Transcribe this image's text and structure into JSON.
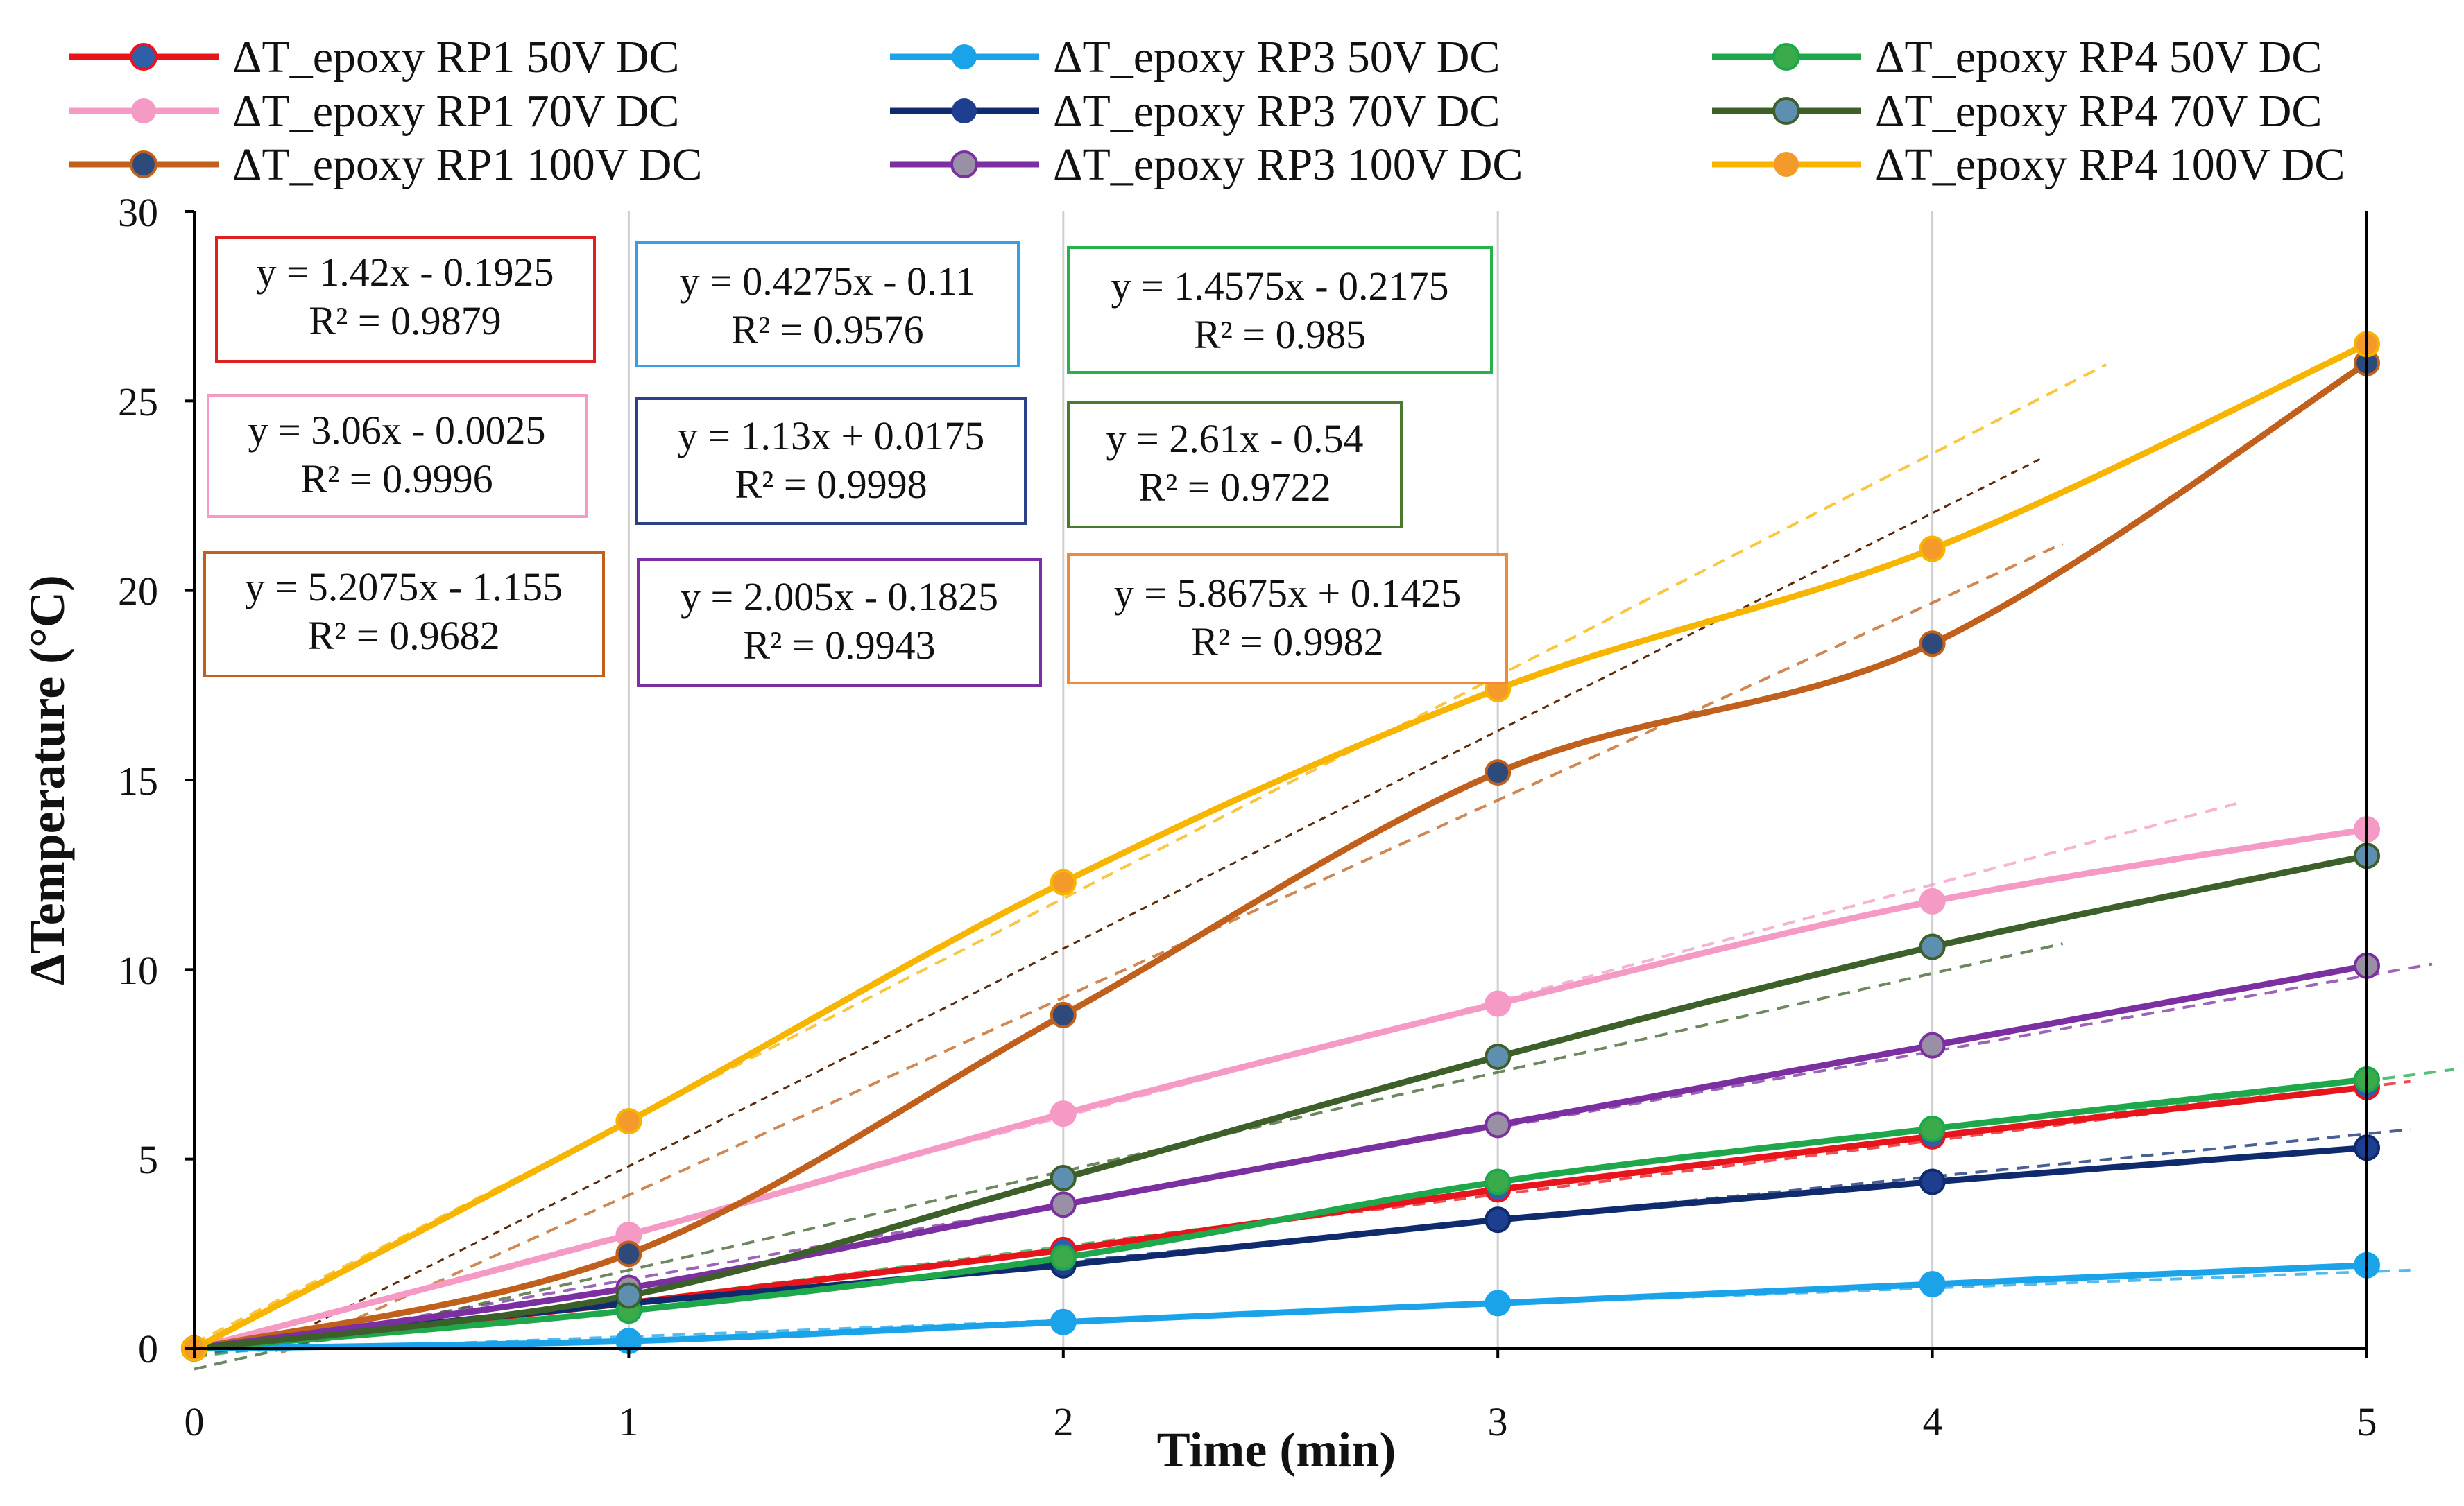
{
  "chart_data": {
    "type": "line",
    "title": "",
    "xlabel": "Time (min)",
    "ylabel": "ΔTemperature (°C)",
    "xlim": [
      0,
      5
    ],
    "ylim": [
      0,
      30
    ],
    "x_ticks": [
      "0",
      "1",
      "2",
      "3",
      "4",
      "5"
    ],
    "y_ticks": [
      "0",
      "5",
      "10",
      "15",
      "20",
      "25",
      "30"
    ],
    "grid": "vertical",
    "legend_position": "top",
    "x": [
      0,
      1,
      2,
      3,
      4,
      5
    ],
    "series": [
      {
        "name": "ΔT_epoxy RP1 50V DC",
        "color": "#e8141b",
        "marker": "#2e5fa8",
        "values": [
          0,
          1.2,
          2.6,
          4.2,
          5.6,
          6.9
        ],
        "fit": {
          "slope": 1.42,
          "intercept": -0.1925
        }
      },
      {
        "name": "ΔT_epoxy RP1 70V DC",
        "color": "#f59ac4",
        "marker": "#f59ac4",
        "values": [
          0,
          3.0,
          6.2,
          9.1,
          11.8,
          13.7
        ],
        "fit": {
          "slope": 3.06,
          "intercept": -0.0025
        }
      },
      {
        "name": "ΔT_epoxy RP1 100V DC",
        "color": "#c0601c",
        "marker": "#2e4a7a",
        "values": [
          0,
          2.5,
          8.8,
          15.2,
          18.6,
          26.0
        ],
        "fit": {
          "slope": 5.2075,
          "intercept": -1.155
        }
      },
      {
        "name": "ΔT_epoxy RP3 50V DC",
        "color": "#1aa3e8",
        "marker": "#1aa3e8",
        "values": [
          0,
          0.2,
          0.7,
          1.2,
          1.7,
          2.2
        ],
        "fit": {
          "slope": 0.4275,
          "intercept": -0.11
        }
      },
      {
        "name": "ΔT_epoxy RP3 70V DC",
        "color": "#102a6e",
        "marker": "#1e3f8f",
        "values": [
          0,
          1.2,
          2.2,
          3.4,
          4.4,
          5.3
        ],
        "fit": {
          "slope": 1.13,
          "intercept": 0.0175
        }
      },
      {
        "name": "ΔT_epoxy RP3 100V DC",
        "color": "#7b2fa0",
        "marker": "#9a90a6",
        "values": [
          0,
          1.6,
          3.8,
          5.9,
          8.0,
          10.1
        ],
        "fit": {
          "slope": 2.005,
          "intercept": -0.1825
        }
      },
      {
        "name": "ΔT_epoxy RP4 50V DC",
        "color": "#1fa84b",
        "marker": "#3aaa4a",
        "values": [
          0,
          1.0,
          2.4,
          4.4,
          5.8,
          7.1
        ],
        "fit": {
          "slope": 1.4575,
          "intercept": -0.2175
        }
      },
      {
        "name": "ΔT_epoxy RP4 70V DC",
        "color": "#3d5f2a",
        "marker": "#5f8fb0",
        "values": [
          0,
          1.4,
          4.5,
          7.7,
          10.6,
          13.0
        ],
        "fit": {
          "slope": 2.61,
          "intercept": -0.54
        }
      },
      {
        "name": "ΔT_epoxy RP4 100V DC",
        "color": "#f7b500",
        "marker": "#f39a2a",
        "values": [
          0,
          6.0,
          12.3,
          17.4,
          21.1,
          26.5
        ],
        "fit": {
          "slope": 5.8675,
          "intercept": 0.1425
        }
      }
    ],
    "equations": [
      {
        "line1": "y = 1.42x - 0.1925",
        "line2": "R² = 0.9879",
        "border": "#e02020"
      },
      {
        "line1": "y = 0.4275x - 0.11",
        "line2": "R² = 0.9576",
        "border": "#35a0e6"
      },
      {
        "line1": "y = 1.4575x - 0.2175",
        "line2": "R² = 0.985",
        "border": "#2ab24a"
      },
      {
        "line1": "y = 3.06x - 0.0025",
        "line2": "R² = 0.9996",
        "border": "#f39bc6"
      },
      {
        "line1": "y = 1.13x + 0.0175",
        "line2": "R² = 0.9998",
        "border": "#2b3f8a"
      },
      {
        "line1": "y = 2.61x - 0.54",
        "line2": "R² = 0.9722",
        "border": "#4a7a2e"
      },
      {
        "line1": "y = 5.2075x - 1.155",
        "line2": "R² = 0.9682",
        "border": "#c0601c"
      },
      {
        "line1": "y = 2.005x - 0.1825",
        "line2": "R² = 0.9943",
        "border": "#7b2fa0"
      },
      {
        "line1": "y = 5.8675x + 0.1425",
        "line2": "R² = 0.9982",
        "border": "#f08a3a"
      }
    ]
  }
}
